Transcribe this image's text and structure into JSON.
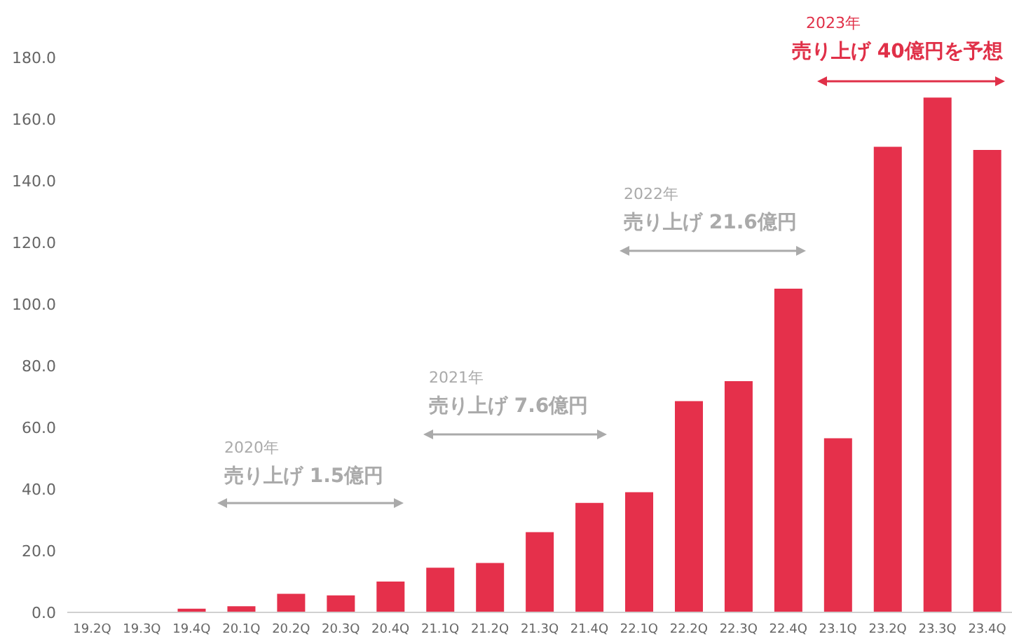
{
  "chart_data": {
    "type": "bar",
    "categories": [
      "19.2Q",
      "19.3Q",
      "19.4Q",
      "20.1Q",
      "20.2Q",
      "20.3Q",
      "20.4Q",
      "21.1Q",
      "21.2Q",
      "21.3Q",
      "21.4Q",
      "22.1Q",
      "22.2Q",
      "22.3Q",
      "22.4Q",
      "23.1Q",
      "23.2Q",
      "23.3Q",
      "23.4Q"
    ],
    "values": [
      0,
      0,
      1.2,
      2,
      6,
      5.5,
      10,
      14.5,
      16,
      26,
      35.5,
      39,
      68.5,
      75,
      105,
      56.5,
      151,
      167,
      150
    ],
    "color": "#e5304b",
    "ylim": [
      0,
      180
    ],
    "yticks": [
      {
        "value": 0,
        "label": "0.0"
      },
      {
        "value": 20,
        "label": "20.0"
      },
      {
        "value": 40,
        "label": "40.0"
      },
      {
        "value": 60,
        "label": "60.0"
      },
      {
        "value": 80,
        "label": "80.0"
      },
      {
        "value": 100,
        "label": "100.0"
      },
      {
        "value": 120,
        "label": "120.0"
      },
      {
        "value": 140,
        "label": "140.0"
      },
      {
        "value": 160,
        "label": "160.0"
      },
      {
        "value": 180,
        "label": "180.0"
      }
    ],
    "grid": false,
    "annotations": [
      "2020年",
      "売り上げ 1.5億円",
      "2021年",
      "売り上げ 7.6億円",
      "2022年",
      "売り上げ 21.6億円",
      "2023年",
      "売り上げ 40億円を予想"
    ]
  }
}
